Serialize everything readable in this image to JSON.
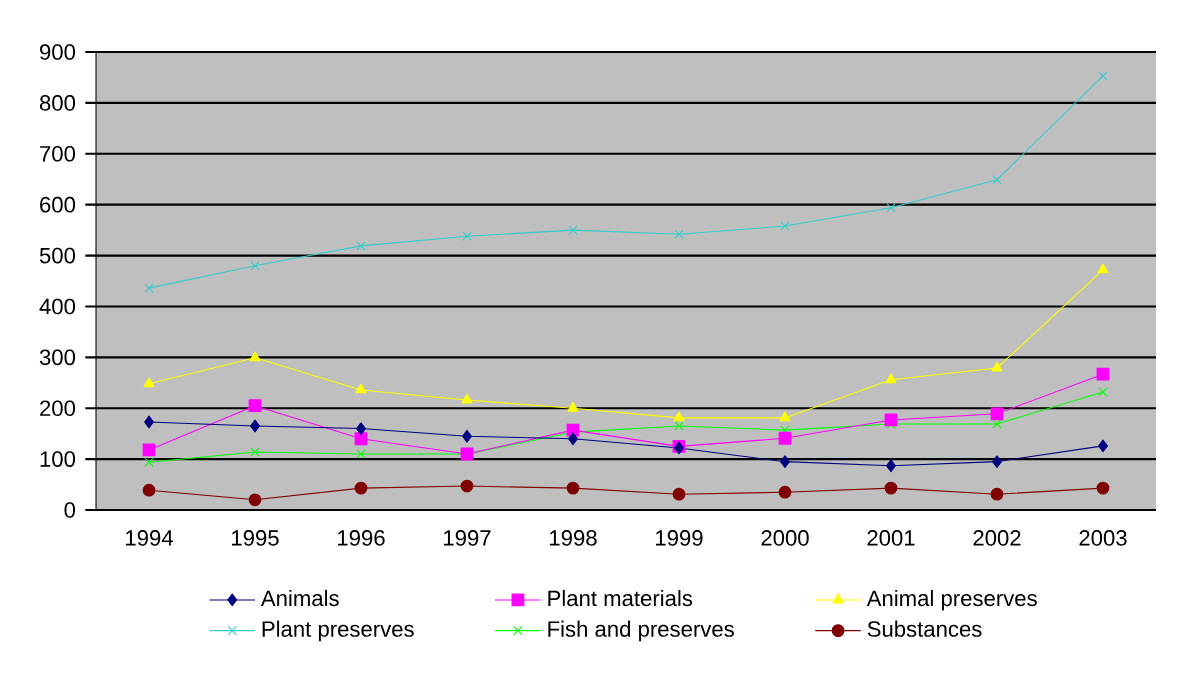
{
  "chart_data": {
    "type": "line",
    "categories": [
      "1994",
      "1995",
      "1996",
      "1997",
      "1998",
      "1999",
      "2000",
      "2001",
      "2002",
      "2003"
    ],
    "series": [
      {
        "name": "Animals",
        "color": "#000080",
        "marker": "diamond",
        "values": [
          173,
          165,
          160,
          145,
          140,
          122,
          95,
          87,
          95,
          126
        ]
      },
      {
        "name": "Plant materials",
        "color": "#ff00ff",
        "marker": "square",
        "values": [
          118,
          205,
          140,
          110,
          157,
          125,
          141,
          177,
          189,
          267
        ]
      },
      {
        "name": "Animal preserves",
        "color": "#ffff00",
        "marker": "triangle",
        "values": [
          248,
          299,
          236,
          216,
          200,
          181,
          181,
          256,
          279,
          472
        ]
      },
      {
        "name": "Plant preserves",
        "color": "#33cccc",
        "marker": "cross",
        "values": [
          436,
          480,
          519,
          538,
          550,
          542,
          558,
          594,
          649,
          853
        ]
      },
      {
        "name": "Fish and preserves",
        "color": "#00ff00",
        "marker": "cross",
        "values": [
          94,
          114,
          110,
          110,
          153,
          165,
          157,
          169,
          169,
          232
        ]
      },
      {
        "name": "Substances",
        "color": "#800000",
        "marker": "circle",
        "values": [
          39,
          20,
          43,
          47,
          43,
          31,
          35,
          43,
          31,
          43
        ]
      }
    ],
    "ylim": [
      0,
      900
    ],
    "yticks": [
      0,
      100,
      200,
      300,
      400,
      500,
      600,
      700,
      800,
      900
    ],
    "grid": "y",
    "legend": "bottom",
    "line_style": "solid"
  }
}
